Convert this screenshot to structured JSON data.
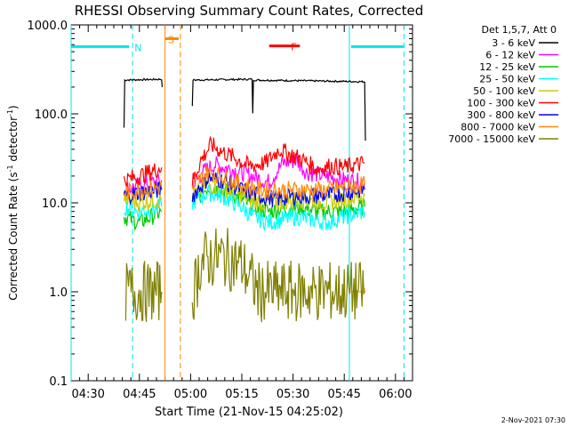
{
  "chart_data": {
    "type": "line",
    "title": "RHESSI Observing Summary Count Rates, Corrected",
    "xlabel": "Start Time (21-Nov-15 04:25:02)",
    "ylabel": "Corrected Count Rate (s⁻¹ detector⁻¹)",
    "ylabel_parts": {
      "main": "Corrected Count Rate (s",
      "sup1": "-1",
      "mid": " detector",
      "sup2": "-1",
      "end": ")"
    },
    "x_axis": {
      "unit": "minutes_after_04:25",
      "range": [
        0,
        100
      ],
      "ticks": [
        [
          5,
          "04:30"
        ],
        [
          20,
          "04:45"
        ],
        [
          35,
          "05:00"
        ],
        [
          50,
          "05:15"
        ],
        [
          65,
          "05:30"
        ],
        [
          80,
          "05:45"
        ],
        [
          95,
          "06:00"
        ]
      ]
    },
    "y_axis": {
      "scale": "log",
      "range": [
        0.1,
        1000
      ],
      "ticks": [
        [
          0.1,
          "0.1"
        ],
        [
          1,
          "1.0"
        ],
        [
          10,
          "10.0"
        ],
        [
          100,
          "100.0"
        ],
        [
          1000,
          "1000.0"
        ]
      ]
    },
    "legend_header": "Det 1,5,7, Att 0",
    "legend_position": "top-right",
    "series": [
      {
        "name": "3 - 6 keV",
        "color": "#000000",
        "segments": [
          [
            [
              15.5,
              70
            ],
            [
              15.7,
              240
            ],
            [
              26.5,
              245
            ],
            [
              26.7,
              200
            ]
          ],
          [
            [
              35.5,
              120
            ],
            [
              35.7,
              240
            ],
            [
              53,
              245
            ],
            [
              53.2,
              100
            ],
            [
              53.4,
              240
            ],
            [
              86,
              230
            ],
            [
              86.2,
              50
            ]
          ]
        ]
      },
      {
        "name": "6 - 12 keV",
        "color": "#ff00ff",
        "segments": [
          [
            [
              15.5,
              14
            ],
            [
              26.5,
              18
            ]
          ],
          [
            [
              35.5,
              15
            ],
            [
              38.5,
              22
            ],
            [
              42,
              27
            ],
            [
              47,
              24
            ],
            [
              53,
              20
            ],
            [
              58,
              17
            ],
            [
              62,
              28
            ],
            [
              66,
              30
            ],
            [
              69,
              22
            ],
            [
              75,
              20
            ],
            [
              80,
              18
            ],
            [
              86,
              17
            ]
          ]
        ]
      },
      {
        "name": "12 - 25 keV",
        "color": "#00cc00",
        "segments": [
          [
            [
              15.5,
              7
            ],
            [
              20,
              6
            ],
            [
              26.5,
              8
            ]
          ],
          [
            [
              35.5,
              10
            ],
            [
              40,
              15
            ],
            [
              44,
              14
            ],
            [
              50,
              11
            ],
            [
              53,
              9
            ],
            [
              58,
              8
            ],
            [
              66,
              9
            ],
            [
              72,
              8
            ],
            [
              80,
              8
            ],
            [
              86,
              9
            ]
          ]
        ]
      },
      {
        "name": "25 - 50 keV",
        "color": "#00ffff",
        "segments": [
          [
            [
              15.5,
              9
            ],
            [
              20,
              8
            ],
            [
              26.5,
              9
            ]
          ],
          [
            [
              35.5,
              10
            ],
            [
              40,
              13
            ],
            [
              44,
              12
            ],
            [
              50,
              9
            ],
            [
              53,
              7
            ],
            [
              58,
              6
            ],
            [
              66,
              7
            ],
            [
              75,
              6
            ],
            [
              80,
              7
            ],
            [
              86,
              8
            ]
          ]
        ]
      },
      {
        "name": "50 - 100 keV",
        "color": "#cccc00",
        "segments": [
          [
            [
              15.5,
              11
            ],
            [
              20,
              10
            ],
            [
              26.5,
              11
            ]
          ],
          [
            [
              35.5,
              12
            ],
            [
              40,
              16
            ],
            [
              44,
              15
            ],
            [
              50,
              12
            ],
            [
              55,
              10
            ],
            [
              60,
              10
            ],
            [
              66,
              11
            ],
            [
              75,
              10
            ],
            [
              80,
              11
            ],
            [
              86,
              12
            ]
          ]
        ]
      },
      {
        "name": "100 - 300 keV",
        "color": "#ff0000",
        "segments": [
          [
            [
              15.5,
              18
            ],
            [
              20,
              20
            ],
            [
              26.5,
              25
            ]
          ],
          [
            [
              35.5,
              17
            ],
            [
              38,
              30
            ],
            [
              41,
              45
            ],
            [
              44,
              38
            ],
            [
              48,
              32
            ],
            [
              52,
              26
            ],
            [
              57,
              28
            ],
            [
              61,
              40
            ],
            [
              64,
              35
            ],
            [
              67,
              32
            ],
            [
              72,
              24
            ],
            [
              76,
              26
            ],
            [
              80,
              25
            ],
            [
              86,
              28
            ]
          ]
        ]
      },
      {
        "name": "300 - 800 keV",
        "color": "#0000ff",
        "segments": [
          [
            [
              15.5,
              12
            ],
            [
              20,
              13
            ],
            [
              26.5,
              14
            ]
          ],
          [
            [
              35.5,
              12
            ],
            [
              40,
              19
            ],
            [
              44,
              18
            ],
            [
              50,
              14
            ],
            [
              55,
              12
            ],
            [
              60,
              11
            ],
            [
              66,
              12
            ],
            [
              75,
              12
            ],
            [
              80,
              13
            ],
            [
              86,
              14
            ]
          ]
        ]
      },
      {
        "name": "800 - 7000 keV",
        "color": "#ff8800",
        "segments": [
          [
            [
              15.5,
              13
            ],
            [
              20,
              14
            ],
            [
              26.5,
              15
            ]
          ],
          [
            [
              35.5,
              15
            ],
            [
              40,
              22
            ],
            [
              44,
              20
            ],
            [
              50,
              16
            ],
            [
              55,
              14
            ],
            [
              60,
              14
            ],
            [
              66,
              14
            ],
            [
              75,
              14
            ],
            [
              80,
              15
            ],
            [
              86,
              16
            ]
          ]
        ]
      },
      {
        "name": "7000 - 15000 keV",
        "color": "#808000",
        "segments": [
          [
            [
              16,
              1
            ],
            [
              26.5,
              1
            ]
          ],
          [
            [
              35.5,
              0.9
            ],
            [
              36.5,
              1.2
            ],
            [
              38,
              2.2
            ],
            [
              44,
              2.5
            ],
            [
              50,
              2
            ],
            [
              53.5,
              1.2
            ],
            [
              55,
              1
            ],
            [
              86,
              1
            ]
          ]
        ]
      }
    ],
    "orbit_lines": [
      {
        "type": "solid",
        "color": "#00e5e5",
        "x": [
          0,
          81.5
        ]
      },
      {
        "type": "dashed",
        "color": "#00e5e5",
        "x": [
          18,
          97.5
        ]
      },
      {
        "type": "solid",
        "color": "#ff8800",
        "x": [
          27.5
        ]
      },
      {
        "type": "dashed",
        "color": "#ff8800",
        "x": [
          32
        ]
      }
    ],
    "step_lines": [
      {
        "color": "#ff8800",
        "points": [
          [
            81.5,
            1
          ],
          [
            86,
            1
          ],
          [
            86,
            1.1
          ]
        ]
      }
    ],
    "markers": [
      {
        "label": "N",
        "color": "#00e5e5",
        "bars": [
          [
            0,
            17
          ],
          [
            82,
            97.5
          ]
        ],
        "y": 570
      },
      {
        "label": "S",
        "color": "#ff8800",
        "bars": [
          [
            27.5,
            31.5
          ]
        ],
        "y": 700
      },
      {
        "label": "F",
        "color": "#ff0000",
        "bars": [
          [
            58,
            67
          ]
        ],
        "y": 580
      }
    ]
  },
  "footer_date": "2-Nov-2021 07:30"
}
